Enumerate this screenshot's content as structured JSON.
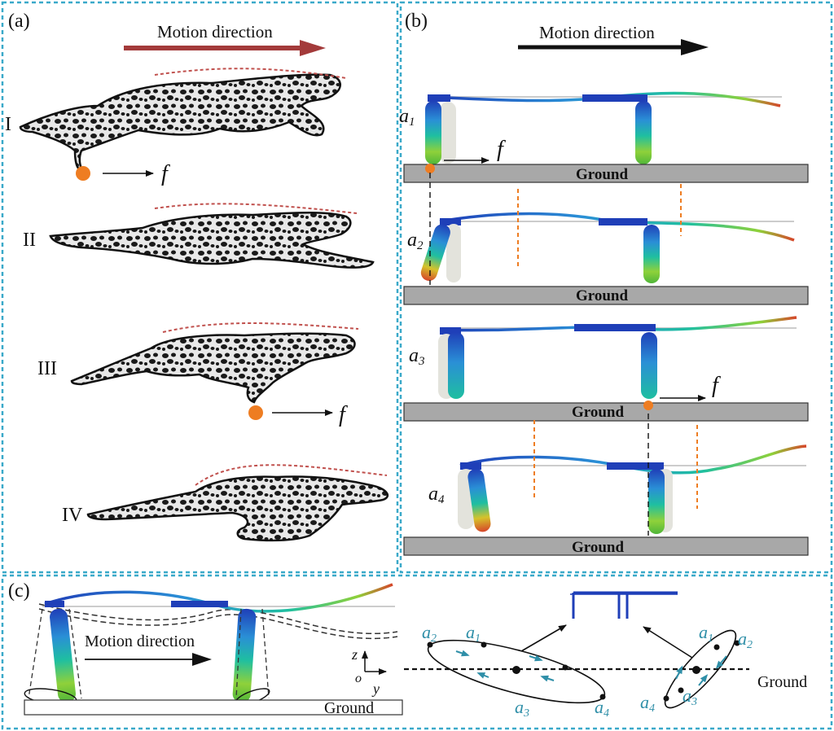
{
  "panels": {
    "a": {
      "tag": "(a)",
      "motion_label": "Motion direction",
      "phases": [
        "I",
        "II",
        "III",
        "IV"
      ],
      "force_label": "f"
    },
    "b": {
      "tag": "(b)",
      "motion_label": "Motion direction",
      "rows": [
        {
          "label": "a",
          "sub": "1",
          "ground": "Ground"
        },
        {
          "label": "a",
          "sub": "2",
          "ground": "Ground"
        },
        {
          "label": "a",
          "sub": "3",
          "ground": "Ground"
        },
        {
          "label": "a",
          "sub": "4",
          "ground": "Ground"
        }
      ],
      "force_label": "f"
    },
    "c": {
      "tag": "(c)",
      "motion_label": "Motion direction",
      "ground": "Ground",
      "axes": {
        "z": "z",
        "o": "o",
        "y": "y"
      },
      "left_ellipse_labels": [
        {
          "label": "a",
          "sub": "2"
        },
        {
          "label": "a",
          "sub": "1"
        },
        {
          "label": "a",
          "sub": "3"
        },
        {
          "label": "a",
          "sub": "4"
        }
      ],
      "right_ellipse_labels": [
        {
          "label": "a",
          "sub": "1"
        },
        {
          "label": "a",
          "sub": "2"
        },
        {
          "label": "a",
          "sub": "4"
        },
        {
          "label": "a",
          "sub": "3"
        }
      ],
      "ground_label": "Ground"
    }
  },
  "colors": {
    "frame": "#3aa9c9",
    "arrow_a": "#a33a3a",
    "dash_red": "#c0504d",
    "foot": "#ee7d22",
    "ground_fill": "#a8a8a8",
    "dash_orange": "#ee7d22",
    "leg_dark": "#1f3fb8"
  }
}
